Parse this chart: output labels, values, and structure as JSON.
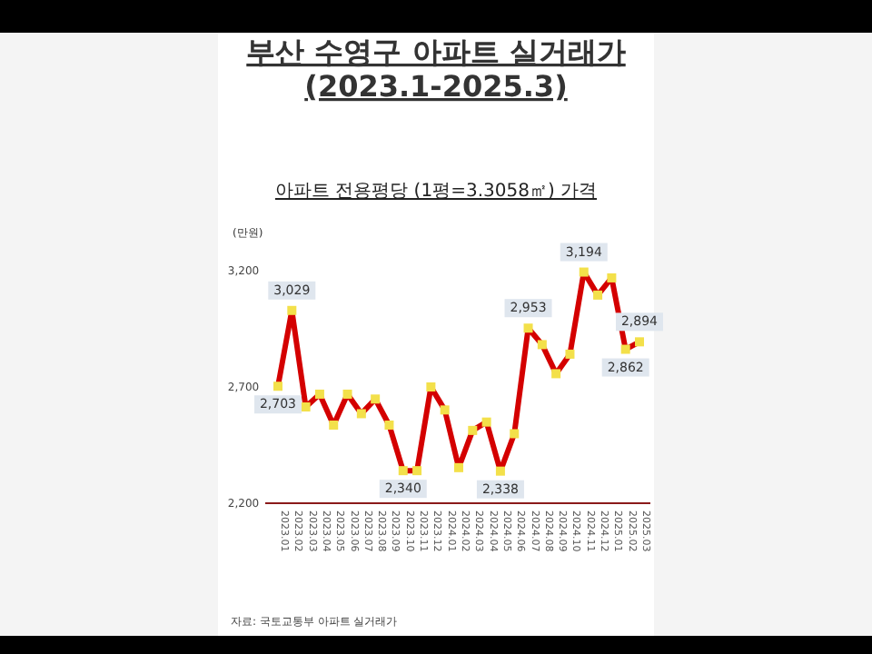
{
  "chart_data": {
    "type": "line",
    "title": "부산 수영구 아파트 실거래가 (2023.1-2025.3)",
    "subtitle": "아파트 전용평당 (1평=3.3058㎡) 가격",
    "ylabel": "(만원)",
    "annotations": [
      "자료: 국토교통부 아파트 실거래가"
    ],
    "categories": [
      "2023.01",
      "2023.02",
      "2023.03",
      "2023.04",
      "2023.05",
      "2023.06",
      "2023.07",
      "2023.08",
      "2023.09",
      "2023.10",
      "2023.11",
      "2023.12",
      "2024.01",
      "2024.02",
      "2024.03",
      "2024.04",
      "2024.05",
      "2024.06",
      "2024.07",
      "2024.08",
      "2024.09",
      "2024.10",
      "2024.11",
      "2024.12",
      "2025.01",
      "2025.02",
      "2025.03"
    ],
    "series": [
      {
        "color": "#d40000",
        "values": [
          2703,
          3029,
          2614,
          2669,
          2536,
          2669,
          2585,
          2648,
          2536,
          2340,
          2340,
          2700,
          2601,
          2353,
          2513,
          2549,
          2338,
          2499,
          2953,
          2882,
          2757,
          2841,
          3194,
          3095,
          3169,
          2862,
          2894
        ],
        "value_labels": [
          "2,703",
          "3,029",
          null,
          null,
          null,
          null,
          null,
          null,
          null,
          "2,340",
          null,
          null,
          null,
          null,
          null,
          null,
          "2,338",
          null,
          "2,953",
          null,
          null,
          null,
          "3,194",
          null,
          null,
          "2,862",
          "2,894"
        ]
      }
    ],
    "ylim": [
      2200,
      3200
    ],
    "yticks": [
      {
        "value": 2200,
        "label": "2,200"
      },
      {
        "value": 2700,
        "label": "2,700"
      },
      {
        "value": 3200,
        "label": "3,200"
      }
    ],
    "marker": "square"
  }
}
